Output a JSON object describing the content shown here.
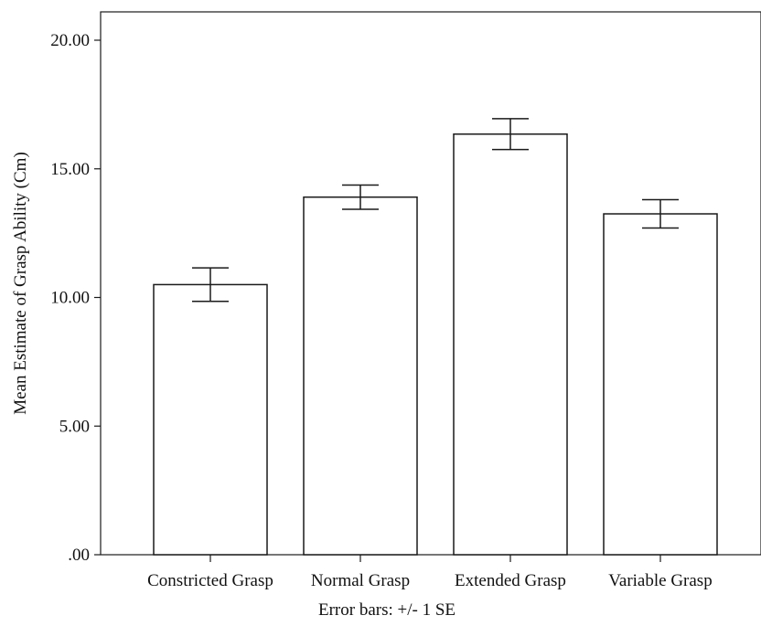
{
  "chart_data": {
    "type": "bar",
    "categories": [
      "Constricted Grasp",
      "Normal Grasp",
      "Extended Grasp",
      "Variable Grasp"
    ],
    "series": [
      {
        "values": [
          10.5,
          13.9,
          16.35,
          13.25
        ],
        "error_se": [
          0.65,
          0.47,
          0.6,
          0.55
        ]
      }
    ],
    "ylabel": "Mean Estimate of Grasp Ability (Cm)",
    "xlabel": "",
    "ylim": [
      0,
      20.0
    ],
    "yticks": [
      0,
      5,
      10,
      15,
      20
    ],
    "ytick_labels": [
      ".00",
      "5.00",
      "10.00",
      "15.00",
      "20.00"
    ],
    "footnote": "Error bars: +/- 1 SE",
    "grid": false,
    "legend": "none",
    "colors": {
      "bar_fill": "#ffffff",
      "bar_stroke": "#1a1a1a",
      "axis": "#1a1a1a"
    }
  }
}
